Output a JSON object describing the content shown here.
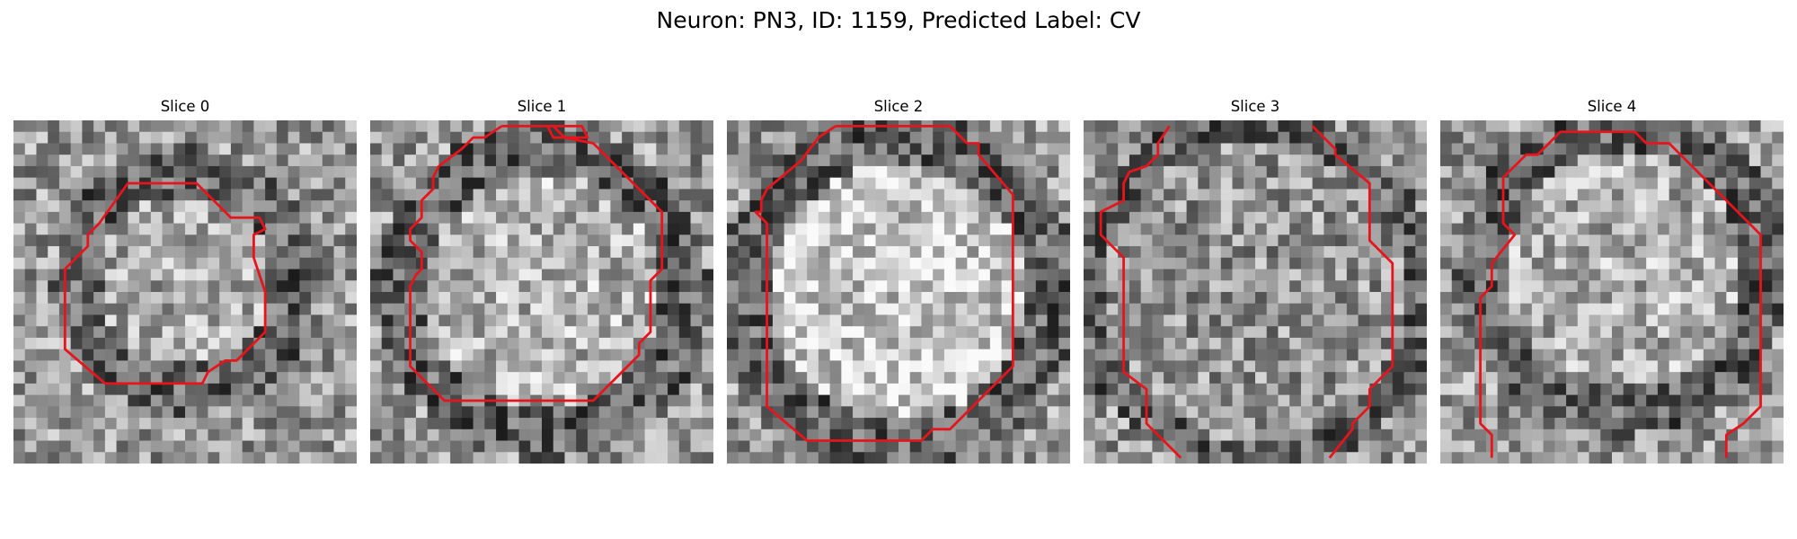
{
  "figure": {
    "title": "Neuron: PN3, ID: 1159, Predicted Label: CV",
    "panels": [
      {
        "title": "Slice 0",
        "seed": 11,
        "blob": {
          "cx": 15,
          "cy": 14,
          "r": 10,
          "ring": 2.6,
          "center": 0.66
        },
        "contour": [
          [
            10.0,
            5.5
          ],
          [
            16.0,
            5.5
          ],
          [
            19.0,
            8.5
          ],
          [
            21.5,
            8.5
          ],
          [
            22.0,
            9.5
          ],
          [
            21.0,
            10.0
          ],
          [
            21.0,
            12.0
          ],
          [
            22.0,
            15.0
          ],
          [
            22.0,
            18.5
          ],
          [
            19.5,
            21.0
          ],
          [
            18.5,
            21.0
          ],
          [
            17.0,
            22.0
          ],
          [
            16.5,
            23.0
          ],
          [
            8.0,
            23.0
          ],
          [
            4.5,
            20.0
          ],
          [
            4.5,
            13.0
          ],
          [
            6.5,
            11.0
          ],
          [
            6.5,
            10.0
          ],
          [
            7.5,
            9.0
          ]
        ]
      },
      {
        "title": "Slice 1",
        "seed": 23,
        "blob": {
          "cx": 15,
          "cy": 15,
          "r": 13,
          "ring": 2.8,
          "center": 0.7
        },
        "contour": [
          [
            11.5,
            0.5
          ],
          [
            10.0,
            1.5
          ],
          [
            9.0,
            1.5
          ],
          [
            8.0,
            2.5
          ],
          [
            6.0,
            4.0
          ],
          [
            5.5,
            5.0
          ],
          [
            5.5,
            6.0
          ],
          [
            4.5,
            7.0
          ],
          [
            4.5,
            8.5
          ],
          [
            3.5,
            9.5
          ],
          [
            3.5,
            10.5
          ],
          [
            4.5,
            11.5
          ],
          [
            4.5,
            13.0
          ],
          [
            4.0,
            13.5
          ],
          [
            3.5,
            14.5
          ],
          [
            3.5,
            21.5
          ],
          [
            6.5,
            24.5
          ],
          [
            19.5,
            24.5
          ],
          [
            22.0,
            22.0
          ],
          [
            23.5,
            20.5
          ],
          [
            23.5,
            19.5
          ],
          [
            24.5,
            18.5
          ],
          [
            24.5,
            14.0
          ],
          [
            25.5,
            13.0
          ],
          [
            25.5,
            8.0
          ],
          [
            24.0,
            6.5
          ],
          [
            19.5,
            2.0
          ],
          [
            17.0,
            1.5
          ],
          [
            16.0,
            0.5
          ],
          [
            15.5,
            0.5
          ],
          [
            16.0,
            1.5
          ],
          [
            19.0,
            1.5
          ],
          [
            19.0,
            1.5
          ],
          [
            18.5,
            0.5
          ]
        ]
      },
      {
        "title": "Slice 2",
        "seed": 37,
        "blob": {
          "cx": 15,
          "cy": 15,
          "r": 14,
          "ring": 2.8,
          "center": 0.78
        },
        "contour": [
          [
            9.5,
            0.5
          ],
          [
            8.0,
            1.5
          ],
          [
            6.5,
            3.5
          ],
          [
            3.5,
            6.0
          ],
          [
            3.0,
            7.0
          ],
          [
            3.0,
            8.0
          ],
          [
            2.5,
            8.0
          ],
          [
            3.5,
            9.0
          ],
          [
            3.5,
            25.0
          ],
          [
            7.0,
            28.0
          ],
          [
            17.0,
            28.0
          ],
          [
            18.0,
            27.0
          ],
          [
            19.5,
            27.0
          ],
          [
            25.0,
            21.5
          ],
          [
            25.0,
            6.5
          ],
          [
            22.0,
            3.0
          ],
          [
            22.0,
            2.0
          ],
          [
            21.0,
            2.0
          ],
          [
            19.5,
            0.5
          ]
        ]
      },
      {
        "title": "Slice 3",
        "seed": 53,
        "blob": {
          "cx": 15,
          "cy": 15,
          "r": 15,
          "ring": 2.0,
          "center": 0.58
        },
        "contour": [
          [
            7.5,
            0.5
          ],
          [
            6.5,
            2.0
          ],
          [
            6.5,
            3.0
          ],
          [
            5.5,
            4.0
          ],
          [
            4.0,
            4.5
          ],
          [
            3.5,
            5.5
          ],
          [
            3.5,
            7.0
          ],
          [
            1.5,
            8.0
          ],
          [
            1.5,
            10.0
          ],
          [
            2.5,
            11.0
          ],
          [
            3.5,
            12.0
          ],
          [
            3.5,
            22.0
          ],
          [
            5.5,
            23.5
          ],
          [
            5.5,
            26.5
          ],
          [
            8.5,
            29.5
          ]
        ]
      },
      {
        "title": "Slice 4",
        "seed": 71,
        "blob": {
          "cx": 16,
          "cy": 13,
          "r": 13,
          "ring": 2.6,
          "center": 0.68
        },
        "contour": [
          [
            4.5,
            29.5
          ],
          [
            4.5,
            27.5
          ],
          [
            3.5,
            26.5
          ],
          [
            3.5,
            15.5
          ],
          [
            4.5,
            14.5
          ],
          [
            4.5,
            12.5
          ],
          [
            6.5,
            10.0
          ],
          [
            5.5,
            9.0
          ],
          [
            5.5,
            5.0
          ],
          [
            6.5,
            4.0
          ],
          [
            7.5,
            3.0
          ],
          [
            8.5,
            3.0
          ],
          [
            9.5,
            2.0
          ],
          [
            10.5,
            1.0
          ],
          [
            13.5,
            1.0
          ],
          [
            17.0,
            1.0
          ],
          [
            18.0,
            2.0
          ],
          [
            20.0,
            2.0
          ],
          [
            28.0,
            10.0
          ],
          [
            28.0,
            25.0
          ],
          [
            26.5,
            26.5
          ],
          [
            25.0,
            27.5
          ],
          [
            25.0,
            29.5
          ]
        ]
      }
    ]
  }
}
